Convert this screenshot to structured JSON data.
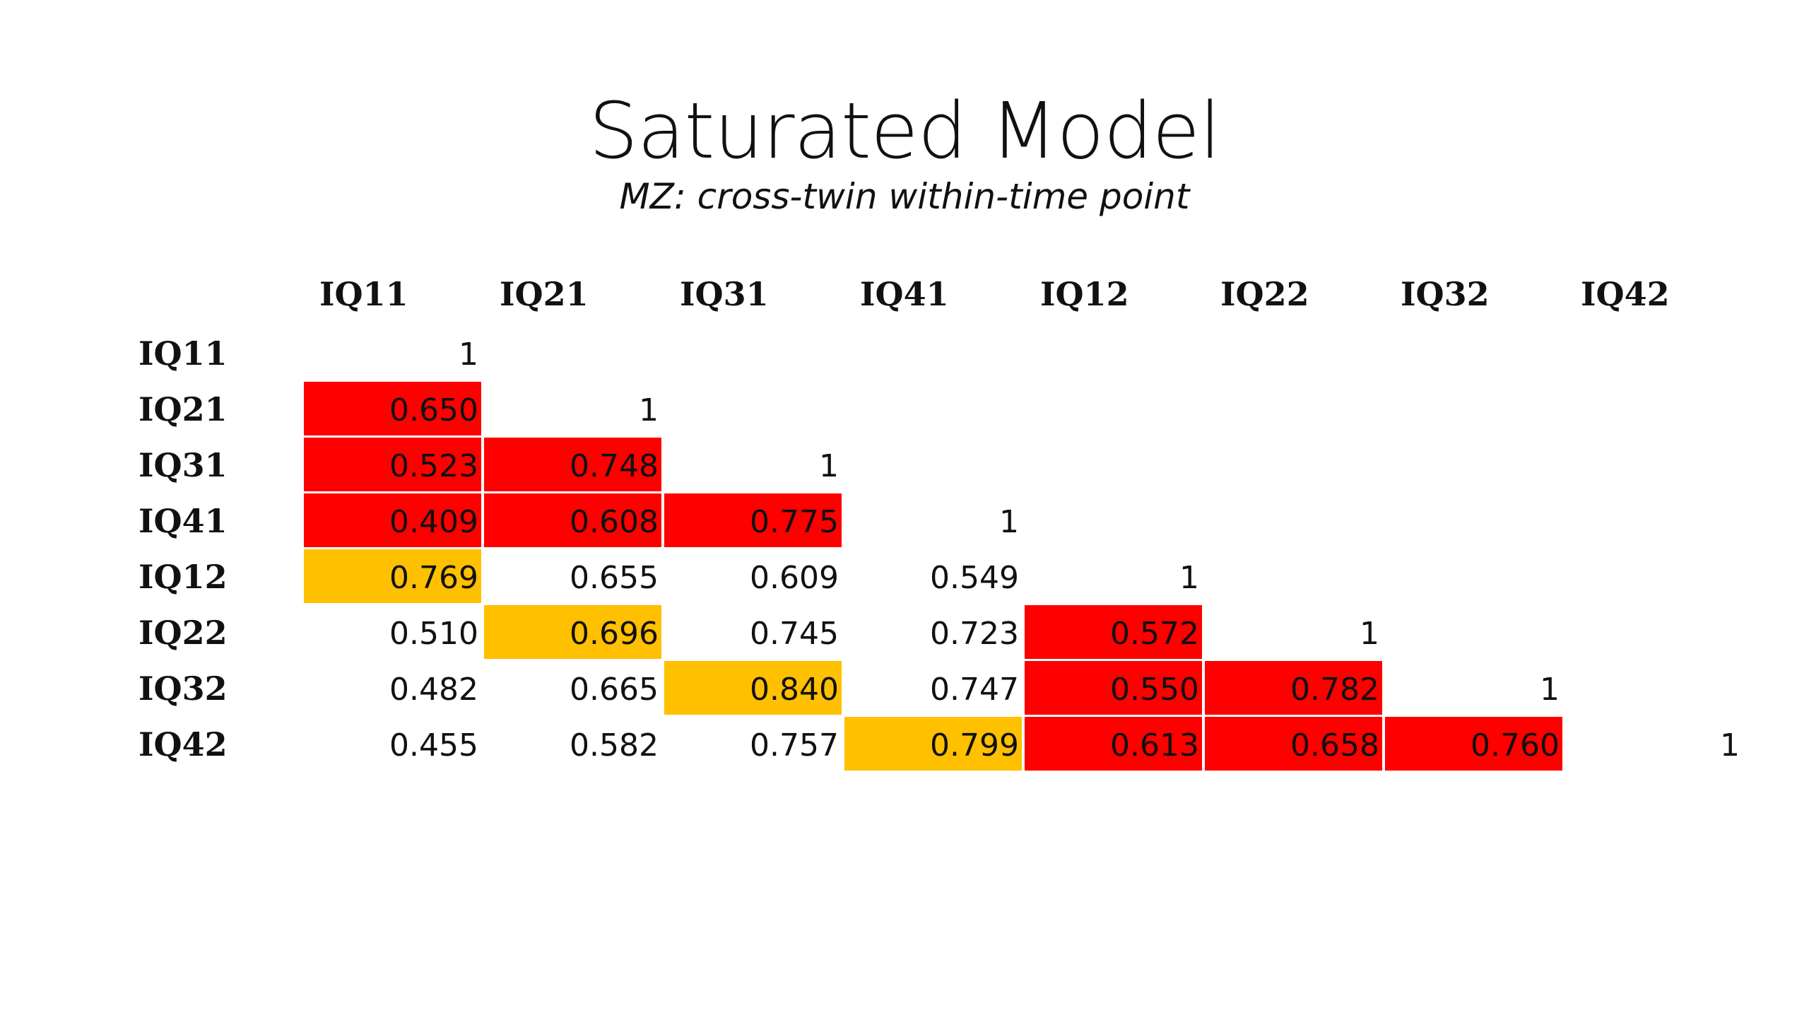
{
  "slide": {
    "title": "Saturated Model",
    "subtitle": "MZ: cross-twin within-time point"
  },
  "colors": {
    "within_twin_highlight": "#ff0000",
    "cross_twin_highlight": "#ffc000",
    "background": "#ffffff"
  },
  "table": {
    "columns": [
      "IQ11",
      "IQ21",
      "IQ31",
      "IQ41",
      "IQ12",
      "IQ22",
      "IQ32",
      "IQ42"
    ],
    "rows": [
      {
        "label": "IQ11",
        "cells": [
          "1"
        ]
      },
      {
        "label": "IQ21",
        "cells": [
          "0.650",
          "1"
        ]
      },
      {
        "label": "IQ31",
        "cells": [
          "0.523",
          "0.748",
          "1"
        ]
      },
      {
        "label": "IQ41",
        "cells": [
          "0.409",
          "0.608",
          "0.775",
          "1"
        ]
      },
      {
        "label": "IQ12",
        "cells": [
          "0.769",
          "0.655",
          "0.609",
          "0.549",
          "1"
        ]
      },
      {
        "label": "IQ22",
        "cells": [
          "0.510",
          "0.696",
          "0.745",
          "0.723",
          "0.572",
          "1"
        ]
      },
      {
        "label": "IQ32",
        "cells": [
          "0.482",
          "0.665",
          "0.840",
          "0.747",
          "0.550",
          "0.782",
          "1"
        ]
      },
      {
        "label": "IQ42",
        "cells": [
          "0.455",
          "0.582",
          "0.757",
          "0.799",
          "0.613",
          "0.658",
          "0.760",
          "1"
        ]
      }
    ],
    "highlights": [
      [
        "none"
      ],
      [
        "red",
        "none"
      ],
      [
        "red",
        "red",
        "none"
      ],
      [
        "red",
        "red",
        "red",
        "none"
      ],
      [
        "amber",
        "none",
        "none",
        "none",
        "none"
      ],
      [
        "none",
        "amber",
        "none",
        "none",
        "red",
        "none"
      ],
      [
        "none",
        "none",
        "amber",
        "none",
        "red",
        "red",
        "none"
      ],
      [
        "none",
        "none",
        "none",
        "amber",
        "red",
        "red",
        "red",
        "none"
      ]
    ]
  }
}
